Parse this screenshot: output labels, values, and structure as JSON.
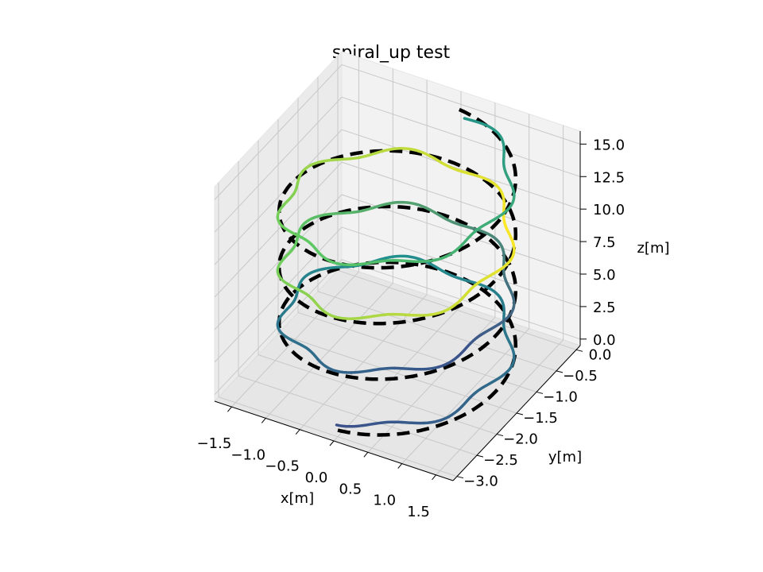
{
  "chart_data": {
    "type": "line3d",
    "title": "spiral_up test",
    "xlabel": "x[m]",
    "ylabel": "y[m]",
    "zlabel": "z[m]",
    "x_ticks": [
      "−1.5",
      "−1.0",
      "−0.5",
      "0.0",
      "0.5",
      "1.0",
      "1.5"
    ],
    "y_ticks": [
      "0.0",
      "−0.5",
      "−1.0",
      "−1.5",
      "−2.0",
      "−2.5",
      "−3.0"
    ],
    "z_ticks": [
      "0.0",
      "2.5",
      "5.0",
      "7.5",
      "10.0",
      "12.5",
      "15.0"
    ],
    "xlim": [
      -1.75,
      1.75
    ],
    "ylim": [
      -3.1,
      0.1
    ],
    "zlim": [
      -0.5,
      16
    ],
    "grid": true,
    "series": [
      {
        "style": "reference dashed, black",
        "color": "#000000",
        "turns": 3.5,
        "center": [
          0.0,
          -1.5
        ],
        "radius": 1.5,
        "z_range": [
          0.0,
          15.0
        ]
      },
      {
        "style": "tracked trajectory, colormap viridis",
        "colormap": [
          "#440154",
          "#3b528b",
          "#21918c",
          "#5ec962",
          "#fde725"
        ],
        "turns": 3.5,
        "center": [
          0.0,
          -1.5
        ],
        "radius": 1.45,
        "z_range": [
          0.5,
          15.0
        ]
      }
    ]
  }
}
